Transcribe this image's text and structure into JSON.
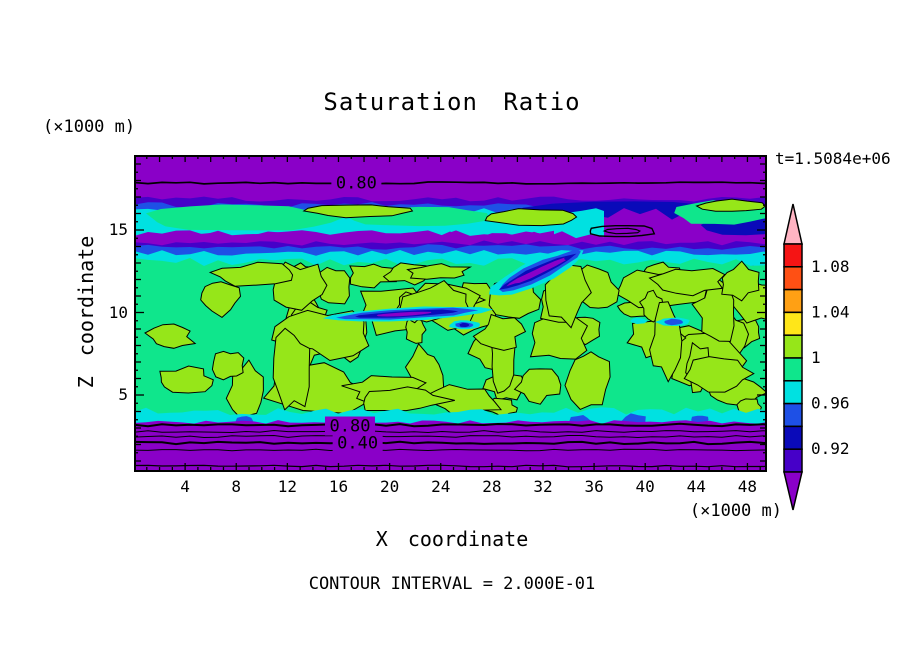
{
  "title": "Saturation Ratio",
  "time_label": "t=1.5084e+06",
  "footer": "CONTOUR INTERVAL = 2.000E-01",
  "y_axis": {
    "label": "Z coordinate",
    "units": "(×1000 m)",
    "ticks": [
      5,
      10,
      15
    ]
  },
  "x_axis": {
    "label": "X coordinate",
    "units": "(×1000 m)",
    "ticks": [
      4,
      8,
      12,
      16,
      20,
      24,
      28,
      32,
      36,
      40,
      44,
      48
    ]
  },
  "palette": {
    "purple": "#8A00C8",
    "indigo": "#4600C8",
    "navy": "#0A0AB9",
    "blue": "#1E50E6",
    "cyan": "#00E1E1",
    "spring": "#0FE68C",
    "chartreuse": "#96E619",
    "yellow": "#FFE619",
    "orange": "#FFA014",
    "orange_red": "#FF5014",
    "red": "#F51414",
    "pink": "#FFB4C3",
    "frame": "#000000",
    "background": "#FFFFFF"
  },
  "colorbar": {
    "over": {
      "color": "#FFB4C3",
      "range": "> 1.10"
    },
    "under": {
      "color": "#8A00C8",
      "range": "< 0.90"
    },
    "cells": [
      {
        "color": "#F51414",
        "range": [
          1.08,
          1.1
        ],
        "label": "1.08"
      },
      {
        "color": "#FF5014",
        "range": [
          1.06,
          1.08
        ],
        "label": ""
      },
      {
        "color": "#FFA014",
        "range": [
          1.04,
          1.06
        ],
        "label": "1.04"
      },
      {
        "color": "#FFE619",
        "range": [
          1.02,
          1.04
        ],
        "label": ""
      },
      {
        "color": "#96E619",
        "range": [
          1.0,
          1.02
        ],
        "label": "1"
      },
      {
        "color": "#0FE68C",
        "range": [
          0.98,
          1.0
        ],
        "label": ""
      },
      {
        "color": "#00E1E1",
        "range": [
          0.96,
          0.98
        ],
        "label": "0.96"
      },
      {
        "color": "#1E50E6",
        "range": [
          0.94,
          0.96
        ],
        "label": ""
      },
      {
        "color": "#0A0AB9",
        "range": [
          0.92,
          0.94
        ],
        "label": "0.92"
      },
      {
        "color": "#4600C8",
        "range": [
          0.9,
          0.92
        ],
        "label": ""
      }
    ]
  },
  "chart_data": {
    "type": "heatmap",
    "title": "Saturation Ratio",
    "xlabel": "X coordinate",
    "x_units": "(×1000 m)",
    "ylabel": "Z coordinate",
    "y_units": "(×1000 m)",
    "x_ticks": [
      4,
      8,
      12,
      16,
      20,
      24,
      28,
      32,
      36,
      40,
      44,
      48
    ],
    "y_ticks": [
      5,
      10,
      15
    ],
    "x_range": [
      0,
      49.5
    ],
    "y_range": [
      0.3,
      19.5
    ],
    "time": "t=1.5084e+06",
    "contour_interval": 0.2,
    "contour_interval_label": "CONTOUR INTERVAL = 2.000E-01",
    "contour_labels": [
      {
        "value": "0.80",
        "x": 17.4,
        "z": 17.85
      },
      {
        "value": "0.80",
        "x": 16.9,
        "z": 3.12
      },
      {
        "value": "0.40",
        "x": 17.5,
        "z": 2.09
      }
    ],
    "field_layers": [
      {
        "z_range": [
          17.9,
          19.5
        ],
        "saturation_ratio": "< 0.80",
        "appearance": "purple band with 0.80 contour line at z≈17.9"
      },
      {
        "z_range": [
          15.0,
          17.9
        ],
        "saturation_ratio": "0.80–0.98",
        "appearance": "stratified indigo/navy/blue/cyan layers with spring-green and chartreuse moist lenses near z≈16; dark dry pocket with closed contour on right"
      },
      {
        "z_range": [
          3.3,
          15.0
        ],
        "saturation_ratio": "0.96–1.02",
        "appearance": "mottled spring-green background with many chartreuse (≥1.00) patches outlined by the 1.0 contour; thin dry purple/navy filaments near z≈10 and z≈12.5"
      },
      {
        "z_range": [
          3.0,
          3.3
        ],
        "saturation_ratio": "0.94–0.98",
        "appearance": "thin cyan/blue fringe"
      },
      {
        "z_range": [
          2.1,
          3.0
        ],
        "saturation_ratio": "0.40–0.80",
        "appearance": "purple band, 0.80 contour at z≈3.0"
      },
      {
        "z_range": [
          0.3,
          2.1
        ],
        "saturation_ratio": "< 0.40",
        "appearance": "purple band, 0.40 contour at z≈2.1"
      }
    ]
  }
}
